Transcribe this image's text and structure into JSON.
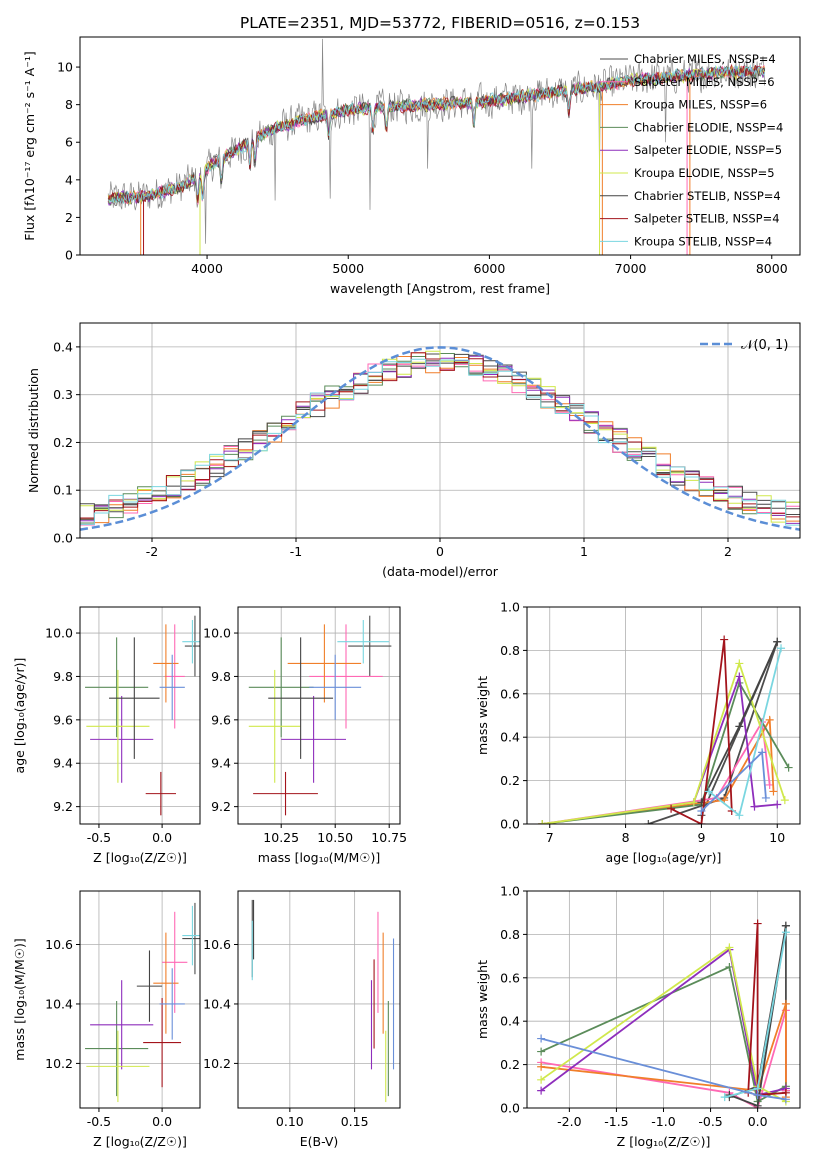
{
  "figure_title": "PLATE=2351, MJD=53772, FIBERID=0516, z=0.153",
  "series_colors": [
    "#4d4d4d",
    "#ff69b4",
    "#f07f2a",
    "#5b8c5a",
    "#8e2ebc",
    "#d0e84c",
    "#444444",
    "#a3141c",
    "#7ad6e0",
    "#6a8fd8"
  ],
  "chart_data": [
    {
      "id": "spectrum",
      "type": "line",
      "title": "PLATE=2351, MJD=53772, FIBERID=0516, z=0.153",
      "xlabel": "wavelength [Angstrom, rest frame]",
      "ylabel": "Flux [fλ10⁻¹⁷ erg cm⁻² s⁻¹ A⁻¹]",
      "xlim": [
        3100,
        8200
      ],
      "ylim": [
        0,
        11.6
      ],
      "xticks": [
        4000,
        5000,
        6000,
        7000,
        8000
      ],
      "yticks": [
        0,
        2,
        4,
        6,
        8,
        10
      ],
      "legend_position": "upper-right",
      "series": [
        {
          "name": "Chabrier MILES, NSSP=4",
          "color": "#4d4d4d"
        },
        {
          "name": "Salpeter MILES, NSSP=6",
          "color": "#ff69b4"
        },
        {
          "name": "Kroupa MILES, NSSP=6",
          "color": "#f07f2a"
        },
        {
          "name": "Chabrier ELODIE, NSSP=4",
          "color": "#5b8c5a"
        },
        {
          "name": "Salpeter ELODIE, NSSP=5",
          "color": "#8e2ebc"
        },
        {
          "name": "Kroupa ELODIE, NSSP=5",
          "color": "#d0e84c"
        },
        {
          "name": "Chabrier STELIB, NSSP=4",
          "color": "#444444"
        },
        {
          "name": "Salpeter STELIB, NSSP=4",
          "color": "#a3141c"
        },
        {
          "name": "Kroupa STELIB, NSSP=4",
          "color": "#7ad6e0"
        }
      ],
      "continuum": {
        "x": [
          3300,
          3550,
          3800,
          3950,
          4050,
          4300,
          4500,
          4800,
          5000,
          5300,
          5600,
          6000,
          6400,
          6800,
          7000,
          7300,
          7600,
          7950
        ],
        "y": [
          3.0,
          3.1,
          3.6,
          4.2,
          4.9,
          6.0,
          6.8,
          7.4,
          7.7,
          7.9,
          8.0,
          8.2,
          8.6,
          9.0,
          9.3,
          9.5,
          9.7,
          9.8
        ]
      }
    },
    {
      "id": "residuals",
      "type": "step",
      "xlabel": "(data-model)/error",
      "ylabel": "Normed distribution",
      "xlim": [
        -2.5,
        2.5
      ],
      "ylim": [
        0,
        0.45
      ],
      "xticks": [
        -2,
        -1,
        0,
        1,
        2
      ],
      "yticks": [
        0.0,
        0.1,
        0.2,
        0.3,
        0.4
      ],
      "legend_position": "upper-right",
      "reference": {
        "name": "𝒩(0, 1)",
        "color": "#5b8ed6",
        "mean": 0,
        "sigma": 1
      },
      "bin_width": 0.1
    },
    {
      "id": "age-vs-Z",
      "type": "errorbar",
      "xlabel": "Z [log₁₀(Z/Z☉)]",
      "ylabel": "age  [log₁₀(age/yr)]",
      "xlim": [
        -0.65,
        0.3
      ],
      "ylim": [
        9.12,
        10.12
      ],
      "xticks": [
        -0.5,
        0.0
      ],
      "yticks": [
        9.2,
        9.4,
        9.6,
        9.8,
        10.0
      ],
      "points": [
        {
          "x": 0.26,
          "y": 9.94,
          "xerr": 0.08,
          "yerr": 0.14,
          "color": "#4d4d4d"
        },
        {
          "x": 0.1,
          "y": 9.8,
          "xerr": 0.08,
          "yerr": 0.24,
          "color": "#ff69b4"
        },
        {
          "x": 0.03,
          "y": 9.86,
          "xerr": 0.1,
          "yerr": 0.18,
          "color": "#f07f2a"
        },
        {
          "x": -0.36,
          "y": 9.75,
          "xerr": 0.25,
          "yerr": 0.23,
          "color": "#5b8c5a"
        },
        {
          "x": -0.32,
          "y": 9.51,
          "xerr": 0.25,
          "yerr": 0.2,
          "color": "#8e2ebc"
        },
        {
          "x": -0.35,
          "y": 9.57,
          "xerr": 0.25,
          "yerr": 0.26,
          "color": "#d0e84c"
        },
        {
          "x": -0.22,
          "y": 9.7,
          "xerr": 0.2,
          "yerr": 0.28,
          "color": "#444444"
        },
        {
          "x": -0.01,
          "y": 9.26,
          "xerr": 0.12,
          "yerr": 0.1,
          "color": "#a3141c"
        },
        {
          "x": 0.24,
          "y": 9.96,
          "xerr": 0.08,
          "yerr": 0.1,
          "color": "#7ad6e0"
        },
        {
          "x": 0.08,
          "y": 9.75,
          "xerr": 0.1,
          "yerr": 0.15,
          "color": "#6a8fd8"
        }
      ]
    },
    {
      "id": "age-vs-mass",
      "type": "errorbar",
      "xlabel": "mass [log₁₀(M/M☉)]",
      "ylabel": "",
      "xlim": [
        10.05,
        10.8
      ],
      "ylim": [
        9.12,
        10.12
      ],
      "xticks": [
        10.25,
        10.5,
        10.75
      ],
      "yticks": [
        9.2,
        9.4,
        9.6,
        9.8,
        10.0
      ],
      "points": [
        {
          "x": 10.66,
          "y": 9.94,
          "xerr": 0.1,
          "yerr": 0.14,
          "color": "#4d4d4d"
        },
        {
          "x": 10.55,
          "y": 9.8,
          "xerr": 0.17,
          "yerr": 0.24,
          "color": "#ff69b4"
        },
        {
          "x": 10.45,
          "y": 9.86,
          "xerr": 0.17,
          "yerr": 0.18,
          "color": "#f07f2a"
        },
        {
          "x": 10.25,
          "y": 9.75,
          "xerr": 0.15,
          "yerr": 0.23,
          "color": "#5b8c5a"
        },
        {
          "x": 10.4,
          "y": 9.51,
          "xerr": 0.15,
          "yerr": 0.2,
          "color": "#8e2ebc"
        },
        {
          "x": 10.22,
          "y": 9.57,
          "xerr": 0.12,
          "yerr": 0.26,
          "color": "#d0e84c"
        },
        {
          "x": 10.34,
          "y": 9.7,
          "xerr": 0.15,
          "yerr": 0.28,
          "color": "#444444"
        },
        {
          "x": 10.27,
          "y": 9.26,
          "xerr": 0.15,
          "yerr": 0.1,
          "color": "#a3141c"
        },
        {
          "x": 10.63,
          "y": 9.96,
          "xerr": 0.12,
          "yerr": 0.1,
          "color": "#7ad6e0"
        },
        {
          "x": 10.5,
          "y": 9.75,
          "xerr": 0.12,
          "yerr": 0.15,
          "color": "#6a8fd8"
        }
      ]
    },
    {
      "id": "weight-vs-age",
      "type": "line",
      "xlabel": "age  [log₁₀(age/yr)]",
      "ylabel": "mass weight",
      "xlim": [
        6.7,
        10.3
      ],
      "ylim": [
        0,
        1.0
      ],
      "xticks": [
        7,
        8,
        9,
        10
      ],
      "yticks": [
        0.0,
        0.2,
        0.4,
        0.6,
        0.8,
        1.0
      ],
      "series": [
        {
          "color": "#4d4d4d",
          "x": [
            8.3,
            9.3,
            10.0,
            9.0
          ],
          "y": [
            0.0,
            0.12,
            0.84,
            0.04
          ]
        },
        {
          "color": "#ff69b4",
          "x": [
            6.9,
            9.2,
            9.8,
            9.9
          ],
          "y": [
            0.0,
            0.12,
            0.47,
            0.18
          ]
        },
        {
          "color": "#f07f2a",
          "x": [
            6.9,
            9.3,
            9.9,
            9.95
          ],
          "y": [
            0.0,
            0.11,
            0.48,
            0.15
          ]
        },
        {
          "color": "#5b8c5a",
          "x": [
            6.9,
            9.0,
            9.5,
            10.15
          ],
          "y": [
            0.0,
            0.09,
            0.65,
            0.26
          ]
        },
        {
          "color": "#8e2ebc",
          "x": [
            8.9,
            9.5,
            9.7,
            10.0
          ],
          "y": [
            0.1,
            0.68,
            0.08,
            0.09
          ]
        },
        {
          "color": "#d0e84c",
          "x": [
            6.9,
            8.9,
            9.5,
            10.1
          ],
          "y": [
            0.0,
            0.1,
            0.74,
            0.11
          ]
        },
        {
          "color": "#444444",
          "x": [
            9.0,
            9.5,
            10.0
          ],
          "y": [
            0.1,
            0.45,
            0.84
          ]
        },
        {
          "color": "#a3141c",
          "x": [
            8.6,
            9.0,
            9.3,
            9.4
          ],
          "y": [
            0.07,
            0.0,
            0.85,
            0.06
          ]
        },
        {
          "color": "#7ad6e0",
          "x": [
            9.1,
            9.5,
            10.05
          ],
          "y": [
            0.15,
            0.04,
            0.81
          ]
        },
        {
          "color": "#6a8fd8",
          "x": [
            9.0,
            9.8,
            9.85
          ],
          "y": [
            0.06,
            0.33,
            0.12
          ]
        }
      ]
    },
    {
      "id": "mass-vs-Z",
      "type": "errorbar",
      "xlabel": "Z [log₁₀(Z/Z☉)]",
      "ylabel": "mass [log₁₀(M/M☉)]",
      "xlim": [
        -0.65,
        0.3
      ],
      "ylim": [
        10.05,
        10.78
      ],
      "xticks": [
        -0.5,
        0.0
      ],
      "yticks": [
        10.2,
        10.4,
        10.6
      ],
      "points": [
        {
          "x": 0.26,
          "y": 10.62,
          "xerr": 0.1,
          "yerr": 0.12,
          "color": "#4d4d4d"
        },
        {
          "x": 0.1,
          "y": 10.54,
          "xerr": 0.1,
          "yerr": 0.17,
          "color": "#ff69b4"
        },
        {
          "x": 0.03,
          "y": 10.47,
          "xerr": 0.1,
          "yerr": 0.17,
          "color": "#f07f2a"
        },
        {
          "x": -0.36,
          "y": 10.25,
          "xerr": 0.25,
          "yerr": 0.16,
          "color": "#5b8c5a"
        },
        {
          "x": -0.32,
          "y": 10.33,
          "xerr": 0.25,
          "yerr": 0.15,
          "color": "#8e2ebc"
        },
        {
          "x": -0.35,
          "y": 10.19,
          "xerr": 0.25,
          "yerr": 0.12,
          "color": "#d0e84c"
        },
        {
          "x": -0.1,
          "y": 10.46,
          "xerr": 0.1,
          "yerr": 0.12,
          "color": "#444444"
        },
        {
          "x": 0.0,
          "y": 10.27,
          "xerr": 0.15,
          "yerr": 0.15,
          "color": "#a3141c"
        },
        {
          "x": 0.24,
          "y": 10.63,
          "xerr": 0.08,
          "yerr": 0.1,
          "color": "#7ad6e0"
        },
        {
          "x": 0.08,
          "y": 10.4,
          "xerr": 0.1,
          "yerr": 0.12,
          "color": "#6a8fd8"
        }
      ]
    },
    {
      "id": "mass-vs-EBV",
      "type": "errorbar",
      "xlabel": "E(B-V)",
      "ylabel": "",
      "xlim": [
        0.06,
        0.185
      ],
      "ylim": [
        10.05,
        10.78
      ],
      "xticks": [
        0.1,
        0.15
      ],
      "yticks": [
        10.2,
        10.4,
        10.6
      ],
      "points": [
        {
          "x": 0.071,
          "y": 10.62,
          "xerr": 0,
          "yerr": 0.13,
          "color": "#4d4d4d"
        },
        {
          "x": 0.168,
          "y": 10.54,
          "xerr": 0,
          "yerr": 0.17,
          "color": "#ff69b4"
        },
        {
          "x": 0.172,
          "y": 10.47,
          "xerr": 0,
          "yerr": 0.17,
          "color": "#f07f2a"
        },
        {
          "x": 0.176,
          "y": 10.25,
          "xerr": 0,
          "yerr": 0.16,
          "color": "#5b8c5a"
        },
        {
          "x": 0.163,
          "y": 10.33,
          "xerr": 0,
          "yerr": 0.15,
          "color": "#8e2ebc"
        },
        {
          "x": 0.174,
          "y": 10.19,
          "xerr": 0,
          "yerr": 0.12,
          "color": "#d0e84c"
        },
        {
          "x": 0.072,
          "y": 10.65,
          "xerr": 0,
          "yerr": 0.1,
          "color": "#444444"
        },
        {
          "x": 0.165,
          "y": 10.4,
          "xerr": 0,
          "yerr": 0.15,
          "color": "#a3141c"
        },
        {
          "x": 0.071,
          "y": 10.58,
          "xerr": 0,
          "yerr": 0.1,
          "color": "#7ad6e0"
        },
        {
          "x": 0.18,
          "y": 10.4,
          "xerr": 0,
          "yerr": 0.22,
          "color": "#6a8fd8"
        }
      ]
    },
    {
      "id": "weight-vs-Z",
      "type": "line",
      "xlabel": "Z [log₁₀(Z/Z☉)]",
      "ylabel": "mass weight",
      "xlim": [
        -2.45,
        0.45
      ],
      "ylim": [
        0,
        1.0
      ],
      "xticks": [
        -2.0,
        -1.5,
        -1.0,
        -0.5,
        0.0
      ],
      "yticks": [
        0.0,
        0.2,
        0.4,
        0.6,
        0.8,
        1.0
      ],
      "series": [
        {
          "color": "#4d4d4d",
          "x": [
            -0.3,
            0.0,
            0.3,
            0.3
          ],
          "y": [
            0.05,
            0.1,
            0.84,
            0.08
          ]
        },
        {
          "color": "#ff69b4",
          "x": [
            -2.3,
            -0.3,
            0.0,
            0.3,
            0.3
          ],
          "y": [
            0.21,
            0.07,
            0.0,
            0.45,
            0.08
          ]
        },
        {
          "color": "#f07f2a",
          "x": [
            -2.3,
            0.0,
            0.3,
            0.3
          ],
          "y": [
            0.19,
            0.08,
            0.48,
            0.05
          ]
        },
        {
          "color": "#5b8c5a",
          "x": [
            -2.3,
            -0.3,
            0.0,
            0.3
          ],
          "y": [
            0.26,
            0.65,
            0.03,
            0.1
          ]
        },
        {
          "color": "#8e2ebc",
          "x": [
            -2.3,
            -0.3,
            0.0,
            0.3
          ],
          "y": [
            0.08,
            0.73,
            0.06,
            0.09
          ]
        },
        {
          "color": "#d0e84c",
          "x": [
            -2.3,
            -0.3,
            0.0,
            0.3
          ],
          "y": [
            0.13,
            0.74,
            0.1,
            0.03
          ]
        },
        {
          "color": "#444444",
          "x": [
            -0.3,
            0.0,
            0.3
          ],
          "y": [
            0.06,
            0.01,
            0.84
          ]
        },
        {
          "color": "#a3141c",
          "x": [
            -0.1,
            0.0,
            0.0,
            0.3
          ],
          "y": [
            0.07,
            0.85,
            0.06,
            0.07
          ]
        },
        {
          "color": "#7ad6e0",
          "x": [
            -0.35,
            0.0,
            0.3
          ],
          "y": [
            0.05,
            0.09,
            0.81
          ]
        },
        {
          "color": "#6a8fd8",
          "x": [
            -2.3,
            0.0,
            0.3
          ],
          "y": [
            0.32,
            0.06,
            0.04
          ]
        }
      ]
    }
  ]
}
